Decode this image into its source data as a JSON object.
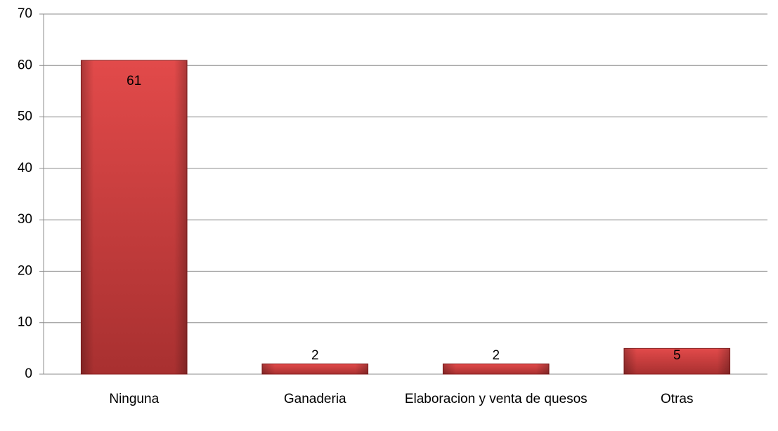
{
  "chart_data": {
    "type": "bar",
    "categories": [
      "Ninguna",
      "Ganaderia",
      "Elaboracion y venta de quesos",
      "Otras"
    ],
    "values": [
      61,
      2,
      2,
      5
    ],
    "color": "#d63c3c",
    "ylim": [
      0,
      70
    ],
    "yticks": [
      0,
      10,
      20,
      30,
      40,
      50,
      60,
      70
    ],
    "grid": true
  }
}
